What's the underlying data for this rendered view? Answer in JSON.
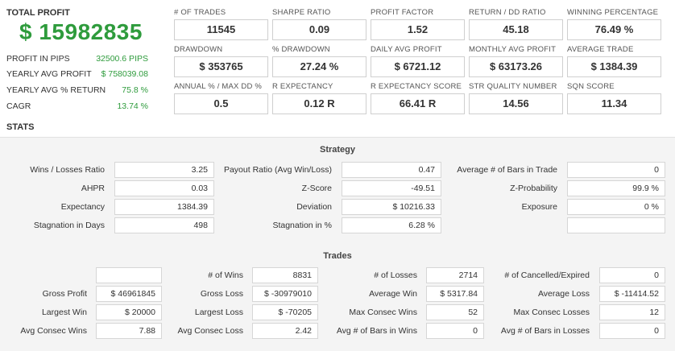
{
  "summary": {
    "total_profit_label": "TOTAL PROFIT",
    "total_profit_value": "$ 15982835",
    "rows": [
      {
        "label": "PROFIT IN PIPS",
        "value": "32500.6 PIPS"
      },
      {
        "label": "YEARLY AVG PROFIT",
        "value": "$ 758039.08"
      },
      {
        "label": "YEARLY AVG % RETURN",
        "value": "75.8 %"
      },
      {
        "label": "CAGR",
        "value": "13.74 %"
      }
    ]
  },
  "metrics": [
    [
      {
        "label": "# OF TRADES",
        "value": "11545"
      },
      {
        "label": "SHARPE RATIO",
        "value": "0.09"
      },
      {
        "label": "PROFIT FACTOR",
        "value": "1.52"
      },
      {
        "label": "RETURN / DD RATIO",
        "value": "45.18"
      },
      {
        "label": "WINNING PERCENTAGE",
        "value": "76.49 %"
      }
    ],
    [
      {
        "label": "DRAWDOWN",
        "value": "$ 353765"
      },
      {
        "label": "% DRAWDOWN",
        "value": "27.24 %"
      },
      {
        "label": "DAILY AVG PROFIT",
        "value": "$ 6721.12"
      },
      {
        "label": "MONTHLY AVG PROFIT",
        "value": "$ 63173.26"
      },
      {
        "label": "AVERAGE TRADE",
        "value": "$ 1384.39"
      }
    ],
    [
      {
        "label": "ANNUAL % / MAX DD %",
        "value": "0.5"
      },
      {
        "label": "R EXPECTANCY",
        "value": "0.12 R"
      },
      {
        "label": "R EXPECTANCY SCORE",
        "value": "66.41 R"
      },
      {
        "label": "STR QUALITY NUMBER",
        "value": "14.56"
      },
      {
        "label": "SQN SCORE",
        "value": "11.34"
      }
    ]
  ],
  "stats_title": "STATS",
  "strategy": {
    "title": "Strategy",
    "rows": [
      [
        {
          "label": "Wins / Losses Ratio",
          "value": "3.25"
        },
        {
          "label": "Payout Ratio (Avg Win/Loss)",
          "value": "0.47"
        },
        {
          "label": "Average # of Bars in Trade",
          "value": "0"
        }
      ],
      [
        {
          "label": "AHPR",
          "value": "0.03"
        },
        {
          "label": "Z-Score",
          "value": "-49.51"
        },
        {
          "label": "Z-Probability",
          "value": "99.9 %"
        }
      ],
      [
        {
          "label": "Expectancy",
          "value": "1384.39"
        },
        {
          "label": "Deviation",
          "value": "$ 10216.33"
        },
        {
          "label": "Exposure",
          "value": "0 %"
        }
      ],
      [
        {
          "label": "Stagnation in Days",
          "value": "498"
        },
        {
          "label": "Stagnation in %",
          "value": "6.28 %"
        },
        {
          "label": "",
          "value": ""
        }
      ]
    ]
  },
  "trades": {
    "title": "Trades",
    "rows": [
      [
        {
          "label": "",
          "value": ""
        },
        {
          "label": "# of Wins",
          "value": "8831"
        },
        {
          "label": "# of Losses",
          "value": "2714"
        },
        {
          "label": "# of Cancelled/Expired",
          "value": "0"
        }
      ],
      [
        {
          "label": "Gross Profit",
          "value": "$ 46961845"
        },
        {
          "label": "Gross Loss",
          "value": "$ -30979010"
        },
        {
          "label": "Average Win",
          "value": "$ 5317.84"
        },
        {
          "label": "Average Loss",
          "value": "$ -11414.52"
        }
      ],
      [
        {
          "label": "Largest Win",
          "value": "$ 20000"
        },
        {
          "label": "Largest Loss",
          "value": "$ -70205"
        },
        {
          "label": "Max Consec Wins",
          "value": "52"
        },
        {
          "label": "Max Consec Losses",
          "value": "12"
        }
      ],
      [
        {
          "label": "Avg Consec Wins",
          "value": "7.88"
        },
        {
          "label": "Avg Consec Loss",
          "value": "2.42"
        },
        {
          "label": "Avg # of Bars in Wins",
          "value": "0"
        },
        {
          "label": "Avg # of Bars in Losses",
          "value": "0"
        }
      ]
    ]
  },
  "colors": {
    "accent_green": "#2e9b3c"
  }
}
